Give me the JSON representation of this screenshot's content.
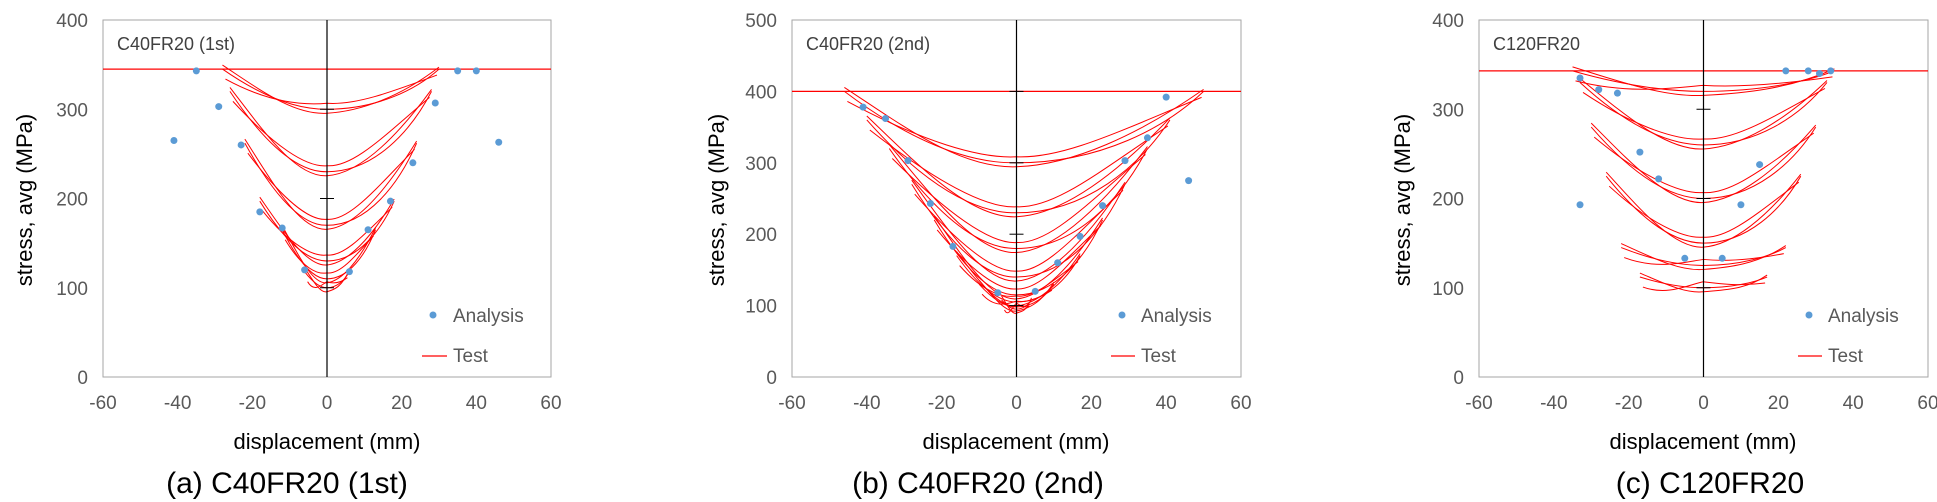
{
  "colors": {
    "test": "#ff0000",
    "analysis": "#5b9bd5",
    "axis": "#000000",
    "frame": "#a6a6a6"
  },
  "chart_data": [
    {
      "type": "scatter",
      "title": "C40FR20 (1st)",
      "caption": "(a) C40FR20 (1st)",
      "xlabel": "displacement (mm)",
      "ylabel": "stress, avg (MPa)",
      "xlim": [
        -60,
        60
      ],
      "ylim": [
        0,
        400
      ],
      "xticks": [
        "-60",
        "-40",
        "-20",
        "0",
        "20",
        "40",
        "60"
      ],
      "yticks": [
        "0",
        "100",
        "200",
        "300",
        "400"
      ],
      "yield_stress": 345,
      "legend": {
        "position": "bottom-right",
        "analysis": "Analysis",
        "test": "Test"
      },
      "analysis": [
        [
          -41,
          265
        ],
        [
          -35,
          343
        ],
        [
          -29,
          303
        ],
        [
          -23,
          260
        ],
        [
          -18,
          185
        ],
        [
          -12,
          167
        ],
        [
          -6,
          120
        ],
        [
          6,
          118
        ],
        [
          11,
          165
        ],
        [
          17,
          197
        ],
        [
          23,
          240
        ],
        [
          29,
          307
        ],
        [
          35,
          343
        ],
        [
          40,
          343
        ],
        [
          46,
          263
        ]
      ],
      "test_loops": [
        {
          "xl": -6,
          "xr": 6,
          "bottom": 100,
          "top": 118
        },
        {
          "xl": -12,
          "xr": 13,
          "bottom": 110,
          "top": 165
        },
        {
          "xl": -18,
          "xr": 18,
          "bottom": 130,
          "top": 197
        },
        {
          "xl": -22,
          "xr": 24,
          "bottom": 170,
          "top": 262
        },
        {
          "xl": -26,
          "xr": 28,
          "bottom": 230,
          "top": 320
        },
        {
          "xl": -28,
          "xr": 30,
          "bottom": 300,
          "top": 345
        }
      ]
    },
    {
      "type": "scatter",
      "title": "C40FR20 (2nd)",
      "caption": "(b) C40FR20 (2nd)",
      "xlabel": "displacement (mm)",
      "ylabel": "stress, avg (MPa)",
      "xlim": [
        -60,
        60
      ],
      "ylim": [
        0,
        500
      ],
      "xticks": [
        "-60",
        "-40",
        "-20",
        "0",
        "20",
        "40",
        "60"
      ],
      "yticks": [
        "0",
        "100",
        "200",
        "300",
        "400",
        "500"
      ],
      "yield_stress": 400,
      "legend": {
        "position": "bottom-right",
        "analysis": "Analysis",
        "test": "Test"
      },
      "analysis": [
        [
          -41,
          378
        ],
        [
          -35,
          362
        ],
        [
          -29,
          303
        ],
        [
          -23,
          243
        ],
        [
          -17,
          183
        ],
        [
          -5,
          118
        ],
        [
          5,
          120
        ],
        [
          11,
          160
        ],
        [
          17,
          197
        ],
        [
          23,
          240
        ],
        [
          29,
          303
        ],
        [
          35,
          335
        ],
        [
          40,
          392
        ],
        [
          46,
          275
        ]
      ],
      "test_loops": [
        {
          "xl": -4,
          "xr": 4,
          "bottom": 95,
          "top": 108
        },
        {
          "xl": -10,
          "xr": 10,
          "bottom": 98,
          "top": 130
        },
        {
          "xl": -16,
          "xr": 17,
          "bottom": 105,
          "top": 170
        },
        {
          "xl": -22,
          "xr": 23,
          "bottom": 115,
          "top": 220
        },
        {
          "xl": -28,
          "xr": 29,
          "bottom": 140,
          "top": 270
        },
        {
          "xl": -34,
          "xr": 35,
          "bottom": 180,
          "top": 320
        },
        {
          "xl": -40,
          "xr": 41,
          "bottom": 230,
          "top": 360
        },
        {
          "xl": -46,
          "xr": 50,
          "bottom": 300,
          "top": 400
        }
      ]
    },
    {
      "type": "scatter",
      "title": "C120FR20",
      "caption": "(c) C120FR20",
      "xlabel": "displacement (mm)",
      "ylabel": "stress, avg (MPa)",
      "xlim": [
        -60,
        60
      ],
      "ylim": [
        0,
        400
      ],
      "xticks": [
        "-60",
        "-40",
        "-20",
        "0",
        "20",
        "40",
        "60"
      ],
      "yticks": [
        "0",
        "100",
        "200",
        "300",
        "400"
      ],
      "yield_stress": 343,
      "legend": {
        "position": "bottom-right",
        "analysis": "Analysis",
        "test": "Test"
      },
      "analysis": [
        [
          -33,
          335
        ],
        [
          -28,
          322
        ],
        [
          -23,
          318
        ],
        [
          -17,
          252
        ],
        [
          -12,
          222
        ],
        [
          -33,
          193
        ],
        [
          -5,
          133
        ],
        [
          5,
          133
        ],
        [
          10,
          193
        ],
        [
          15,
          238
        ],
        [
          22,
          343
        ],
        [
          28,
          343
        ],
        [
          31,
          340
        ],
        [
          34,
          343
        ]
      ],
      "test_loops": [
        {
          "xl": -17,
          "xr": 17,
          "bottom": 100,
          "top": 112
        },
        {
          "xl": -22,
          "xr": 22,
          "bottom": 125,
          "top": 145
        },
        {
          "xl": -26,
          "xr": 26,
          "bottom": 150,
          "top": 225
        },
        {
          "xl": -30,
          "xr": 30,
          "bottom": 200,
          "top": 280
        },
        {
          "xl": -33,
          "xr": 33,
          "bottom": 260,
          "top": 330
        },
        {
          "xl": -35,
          "xr": 35,
          "bottom": 320,
          "top": 343
        }
      ]
    }
  ]
}
